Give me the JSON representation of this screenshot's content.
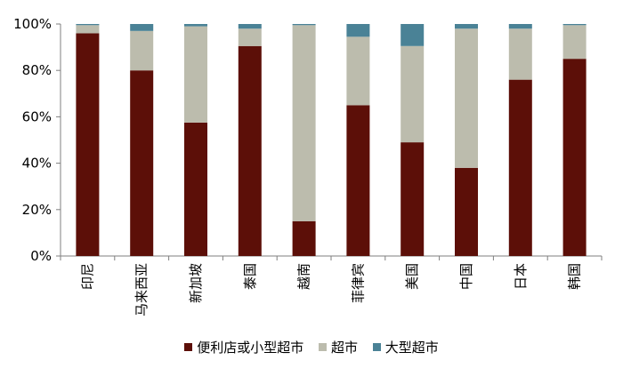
{
  "chart_data": {
    "type": "bar",
    "stacked": true,
    "percent": true,
    "categories": [
      "印尼",
      "马来西亚",
      "新加坡",
      "泰国",
      "越南",
      "菲律宾",
      "美国",
      "中国",
      "日本",
      "韩国"
    ],
    "series": [
      {
        "name": "便利店或小型超市",
        "color": "#5c0f08",
        "values": [
          96,
          80,
          57.5,
          90.5,
          15,
          65,
          49,
          38,
          76,
          85
        ]
      },
      {
        "name": "超市",
        "color": "#bcbcad",
        "values": [
          3.5,
          17,
          41.5,
          7.5,
          84.5,
          29.5,
          41.5,
          60,
          22,
          14.5
        ]
      },
      {
        "name": "大型超市",
        "color": "#4a8296",
        "values": [
          0.5,
          3,
          1,
          2,
          0.5,
          5.5,
          9.5,
          2,
          2,
          0.5
        ]
      }
    ],
    "yticks": [
      "0%",
      "20%",
      "40%",
      "60%",
      "80%",
      "100%"
    ],
    "ylim": [
      0,
      100
    ],
    "grid": false,
    "legend_position": "bottom"
  }
}
